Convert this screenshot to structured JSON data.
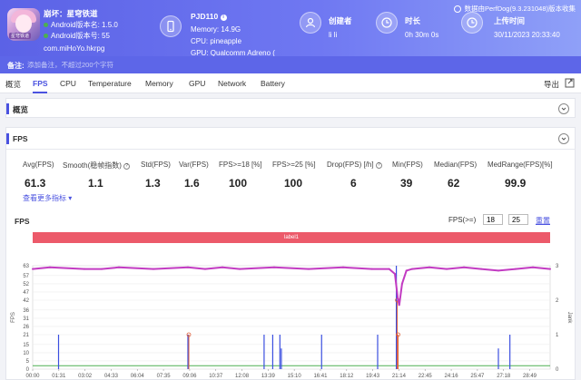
{
  "header": {
    "app": {
      "name": "崩坏：星穹铁道",
      "version_name_label": "Android版本名: 1.5.0",
      "version_code_label": "Android版本号: 55",
      "package": "com.miHoYo.hkrpg",
      "icon_tag": "星穹铁道"
    },
    "device": {
      "name": "PJD110",
      "memory": "Memory: 14.9G",
      "cpu": "CPU: pineapple",
      "gpu": "GPU: Qualcomm Adreno ("
    },
    "creator": {
      "title": "创建者",
      "value": "li li"
    },
    "duration": {
      "title": "时长",
      "value": "0h 30m 0s"
    },
    "upload": {
      "title": "上传时间",
      "value": "30/11/2023 20:33:40"
    },
    "perfdog_note": "数据由PerfDog(9.3.231048)版本收集"
  },
  "note": {
    "label": "备注:",
    "placeholder": "添加备注，不超过200个字符"
  },
  "tabs": [
    "概览",
    "FPS",
    "CPU",
    "Temperature",
    "Memory",
    "GPU",
    "Network",
    "Battery"
  ],
  "active_tab": "FPS",
  "export_label": "导出",
  "overview_panel": {
    "title": "概览"
  },
  "fps_panel": {
    "title": "FPS"
  },
  "stats": [
    {
      "label": "Avg(FPS)",
      "value": "61.3",
      "help": false
    },
    {
      "label": "Smooth(稳帧指数)",
      "value": "1.1",
      "help": true
    },
    {
      "label": "Std(FPS)",
      "value": "1.3",
      "help": false
    },
    {
      "label": "Var(FPS)",
      "value": "1.6",
      "help": false
    },
    {
      "label": "FPS>=18 [%]",
      "value": "100",
      "help": false
    },
    {
      "label": "FPS>=25 [%]",
      "value": "100",
      "help": false
    },
    {
      "label": "Drop(FPS) [/h]",
      "value": "6",
      "help": true
    },
    {
      "label": "Min(FPS)",
      "value": "39",
      "help": false
    },
    {
      "label": "Median(FPS)",
      "value": "62",
      "help": false
    },
    {
      "label": "MedRange(FPS)[%]",
      "value": "99.9",
      "help": false
    }
  ],
  "more_metrics": "查看更多指标 ▾",
  "chart_header": {
    "title": "FPS",
    "threshold_label": "FPS(>=)",
    "threshold_1": "18",
    "threshold_2": "25",
    "reset": "重置",
    "band_label": "label1"
  },
  "colors": {
    "accent": "#4a52e0",
    "fps_line": "#c23bc2",
    "jank": "#3b4fe0",
    "big_jank": "#e0603b",
    "stutter": "#4caf50"
  },
  "chart_data": {
    "type": "line",
    "title": "FPS",
    "ylabel": "FPS",
    "y2label": "Jank",
    "ylim": [
      0,
      63
    ],
    "y_ticks": [
      0,
      5,
      10,
      15,
      21,
      26,
      31,
      36,
      42,
      47,
      52,
      57,
      63
    ],
    "y2lim": [
      0,
      3
    ],
    "y2_ticks": [
      0,
      1,
      2,
      3
    ],
    "x_ticks": [
      "00:00",
      "01:31",
      "03:02",
      "04:33",
      "06:04",
      "07:35",
      "09:06",
      "10:37",
      "12:08",
      "13:39",
      "15:10",
      "16:41",
      "18:12",
      "19:43",
      "21:14",
      "22:45",
      "24:16",
      "25:47",
      "27:18",
      "28:49"
    ],
    "xlim_seconds": [
      0,
      1800
    ],
    "series": [
      {
        "name": "FPS",
        "points": [
          [
            0,
            61
          ],
          [
            60,
            62
          ],
          [
            180,
            61
          ],
          [
            240,
            61
          ],
          [
            300,
            62
          ],
          [
            420,
            61
          ],
          [
            540,
            62
          ],
          [
            600,
            61
          ],
          [
            660,
            62
          ],
          [
            720,
            61
          ],
          [
            840,
            62
          ],
          [
            960,
            61
          ],
          [
            1080,
            62
          ],
          [
            1180,
            61
          ],
          [
            1240,
            61
          ],
          [
            1260,
            58
          ],
          [
            1270,
            43
          ],
          [
            1275,
            39
          ],
          [
            1285,
            52
          ],
          [
            1300,
            60
          ],
          [
            1320,
            61
          ],
          [
            1380,
            62
          ],
          [
            1440,
            61
          ],
          [
            1500,
            62
          ],
          [
            1560,
            61
          ],
          [
            1620,
            60
          ],
          [
            1680,
            61
          ],
          [
            1740,
            62
          ],
          [
            1800,
            61
          ]
        ]
      },
      {
        "name": "Jank",
        "spikes": [
          [
            90,
            1
          ],
          [
            540,
            1
          ],
          [
            805,
            1
          ],
          [
            835,
            1
          ],
          [
            860,
            1
          ],
          [
            865,
            0.6
          ],
          [
            1005,
            1
          ],
          [
            1200,
            1
          ],
          [
            1265,
            3
          ],
          [
            1620,
            0.6
          ],
          [
            1660,
            1
          ]
        ]
      },
      {
        "name": "BigJank",
        "spikes": [
          [
            540,
            1
          ],
          [
            1265,
            2
          ],
          [
            1268,
            1
          ]
        ]
      },
      {
        "name": "Stutter",
        "level": 0.1
      }
    ]
  }
}
